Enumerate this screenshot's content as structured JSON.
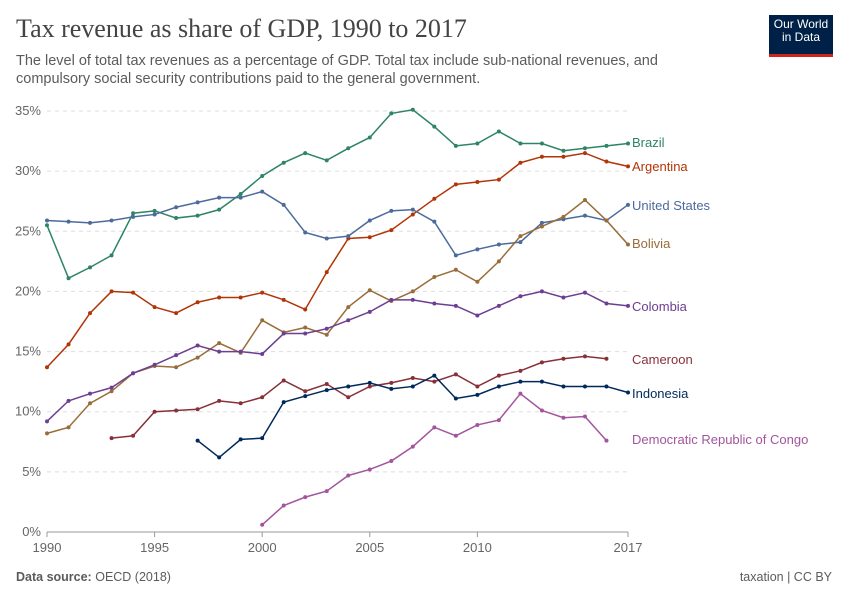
{
  "header": {
    "title": "Tax revenue as share of GDP, 1990 to 2017",
    "subtitle": "The level of total tax revenues as a percentage of GDP. Total tax include sub-national revenues, and compulsory social security contributions paid to the general government.",
    "logo": "Our World in Data"
  },
  "footer": {
    "source_label": "Data source:",
    "source": "OECD (2018)",
    "license": "taxation | CC BY"
  },
  "chart_data": {
    "type": "line",
    "title": "Tax revenue as share of GDP, 1990 to 2017",
    "xlim": [
      1990,
      2017
    ],
    "ylim": [
      0,
      35
    ],
    "x_ticks": [
      "1990",
      "1995",
      "2000",
      "2005",
      "2010",
      "2017"
    ],
    "y_ticks": [
      "0%",
      "5%",
      "10%",
      "15%",
      "20%",
      "25%",
      "30%",
      "35%"
    ],
    "grid": "horizontal dashed",
    "legend": "right, inline labels",
    "series": [
      {
        "name": "Brazil",
        "color": "#2e8465",
        "start": 1990,
        "values": [
          25.5,
          21.1,
          22.0,
          23.0,
          26.5,
          26.7,
          26.1,
          26.3,
          26.8,
          28.1,
          29.6,
          30.7,
          31.5,
          30.9,
          31.9,
          32.8,
          34.8,
          35.1,
          33.7,
          32.1,
          32.3,
          33.3,
          32.3,
          32.3,
          31.7,
          31.9,
          32.1,
          32.3
        ]
      },
      {
        "name": "Argentina",
        "color": "#b13507",
        "start": 1990,
        "values": [
          13.7,
          15.6,
          18.2,
          20.0,
          19.9,
          18.7,
          18.2,
          19.1,
          19.5,
          19.5,
          19.9,
          19.3,
          18.5,
          21.6,
          24.4,
          24.5,
          25.1,
          26.4,
          27.7,
          28.9,
          29.1,
          29.3,
          30.7,
          31.2,
          31.2,
          31.5,
          30.8,
          30.4
        ]
      },
      {
        "name": "United States",
        "color": "#4c6a9c",
        "start": 1990,
        "values": [
          25.9,
          25.8,
          25.7,
          25.9,
          26.2,
          26.4,
          27.0,
          27.4,
          27.8,
          27.8,
          28.3,
          27.2,
          24.9,
          24.4,
          24.6,
          25.9,
          26.7,
          26.8,
          25.8,
          23.0,
          23.5,
          23.9,
          24.1,
          25.7,
          26.0,
          26.3,
          25.9,
          27.2
        ]
      },
      {
        "name": "Bolivia",
        "color": "#996d39",
        "start": 1990,
        "values": [
          8.2,
          8.7,
          10.7,
          11.7,
          13.2,
          13.8,
          13.7,
          14.5,
          15.7,
          14.9,
          17.6,
          16.6,
          17.0,
          16.4,
          18.7,
          20.1,
          19.2,
          20.0,
          21.2,
          21.8,
          20.8,
          22.5,
          24.6,
          25.4,
          26.2,
          27.6,
          25.9,
          23.9
        ]
      },
      {
        "name": "Colombia",
        "color": "#6d3e91",
        "start": 1990,
        "values": [
          9.2,
          10.9,
          11.5,
          12.0,
          13.2,
          13.9,
          14.7,
          15.5,
          15.0,
          15.0,
          14.8,
          16.5,
          16.5,
          16.9,
          17.6,
          18.3,
          19.3,
          19.3,
          19.0,
          18.8,
          18.0,
          18.8,
          19.6,
          20.0,
          19.5,
          19.9,
          19.0,
          18.8
        ]
      },
      {
        "name": "Cameroon",
        "color": "#883039",
        "start": 1993,
        "values": [
          7.8,
          8.0,
          10.0,
          10.1,
          10.2,
          10.9,
          10.7,
          11.2,
          12.6,
          11.7,
          12.3,
          11.2,
          12.1,
          12.4,
          12.8,
          12.5,
          13.1,
          12.1,
          13.0,
          13.4,
          14.1,
          14.4,
          14.6,
          14.4
        ]
      },
      {
        "name": "Indonesia",
        "color": "#00295b",
        "start": 1997,
        "values": [
          7.6,
          6.2,
          7.7,
          7.8,
          10.8,
          11.3,
          11.8,
          12.1,
          12.4,
          11.9,
          12.1,
          13.0,
          11.1,
          11.4,
          12.1,
          12.5,
          12.5,
          12.1,
          12.1,
          12.1,
          11.6
        ]
      },
      {
        "name": "Democratic Republic of Congo",
        "color": "#a2559c",
        "start": 2000,
        "values": [
          0.6,
          2.2,
          2.9,
          3.4,
          4.7,
          5.2,
          5.9,
          7.1,
          8.7,
          8.0,
          8.9,
          9.3,
          11.5,
          10.1,
          9.5,
          9.6,
          7.6
        ]
      }
    ]
  }
}
